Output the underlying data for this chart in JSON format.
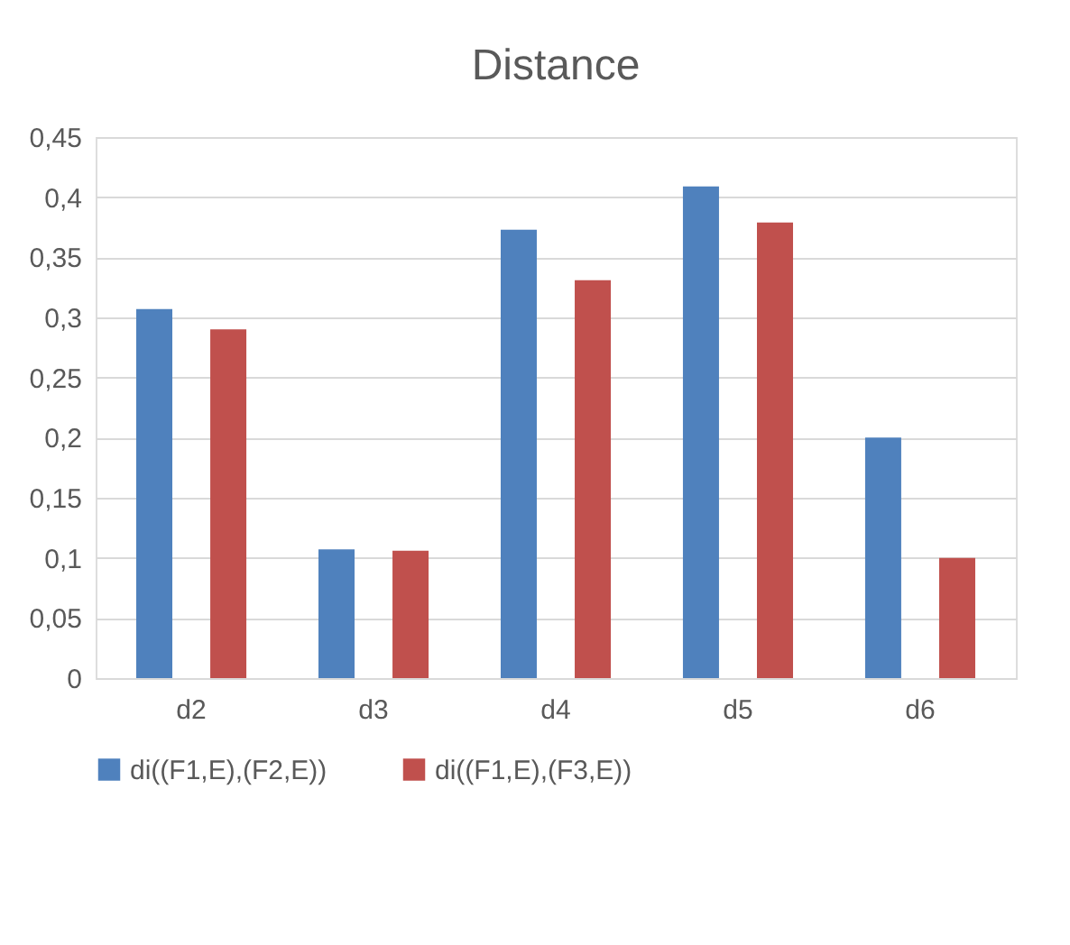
{
  "chart_data": {
    "type": "bar",
    "title": "Distance",
    "categories": [
      "d2",
      "d3",
      "d4",
      "d5",
      "d6"
    ],
    "series": [
      {
        "name": "di((F1,E),(F2,E))",
        "color": "#4f81bd",
        "values": [
          0.307,
          0.107,
          0.373,
          0.409,
          0.2
        ]
      },
      {
        "name": "di((F1,E),(F3,E))",
        "color": "#c0504d",
        "values": [
          0.29,
          0.106,
          0.331,
          0.379,
          0.1
        ]
      }
    ],
    "ylim": [
      0,
      0.45
    ],
    "yticks": [
      0,
      {
        "value": 0.05,
        "label": "0,05"
      },
      {
        "value": 0.1,
        "label": "0,1"
      },
      {
        "value": 0.15,
        "label": "0,15"
      },
      {
        "value": 0.2,
        "label": "0,2"
      },
      {
        "value": 0.25,
        "label": "0,25"
      },
      {
        "value": 0.3,
        "label": "0,3"
      },
      {
        "value": 0.35,
        "label": "0,35"
      },
      {
        "value": 0.4,
        "label": "0,4"
      },
      {
        "value": 0.45,
        "label": "0,45"
      }
    ],
    "grid": "y",
    "legend": "bottom"
  }
}
